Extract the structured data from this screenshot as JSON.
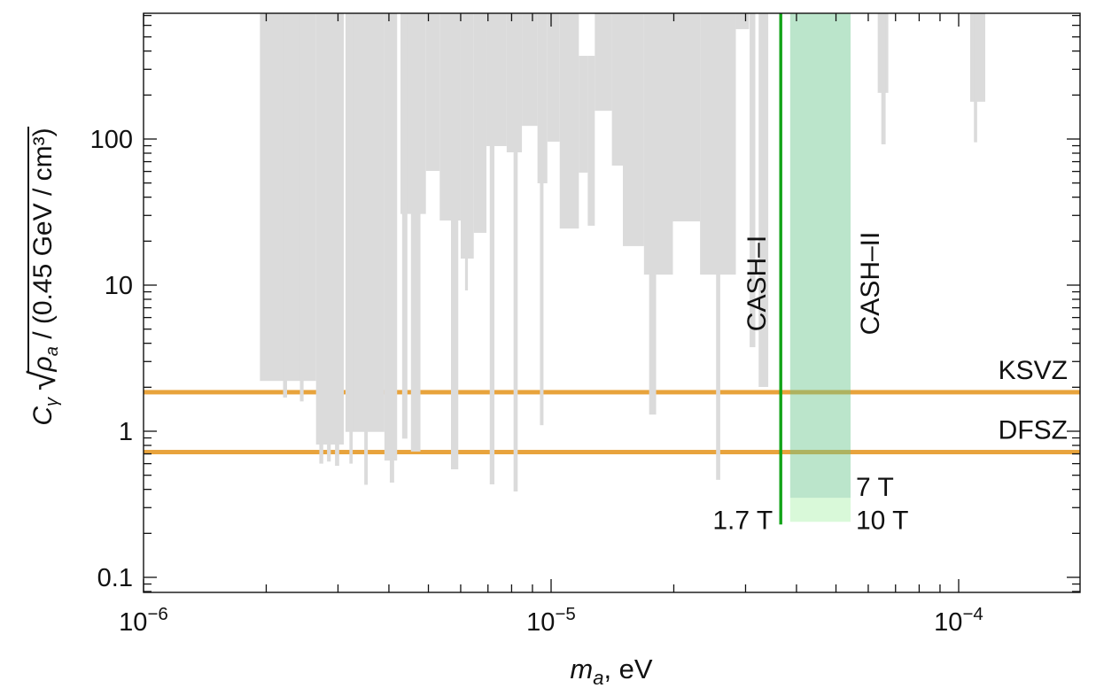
{
  "chart_data": {
    "type": "area",
    "title": "",
    "x_axis": {
      "label_symbol": "m",
      "label_symbol_sub": "a",
      "label_rest": ", eV",
      "scale": "log",
      "range": [
        1e-06,
        0.000199
      ],
      "major_ticks": [
        {
          "value": 1e-06,
          "base": "10",
          "exp": "−6"
        },
        {
          "value": 1e-05,
          "base": "10",
          "exp": "−5"
        },
        {
          "value": 0.0001,
          "base": "10",
          "exp": "−4"
        }
      ]
    },
    "y_axis": {
      "label_prefix": "C",
      "label_prefix_sub": "γ",
      "label_sqrt": "√",
      "label_radicand": "ρ",
      "label_radicand_sub": "a",
      "label_radicand_rest": " / (0.45 GeV / cm³)",
      "scale": "log",
      "range": [
        0.079,
        726
      ],
      "major_ticks": [
        {
          "value": 0.1,
          "label": "0.1"
        },
        {
          "value": 1,
          "label": "1"
        },
        {
          "value": 10,
          "label": "10"
        },
        {
          "value": 100,
          "label": "100"
        }
      ]
    },
    "series": {
      "excluded_region": {
        "name": "gray-exclusion-region",
        "color": "#DBDBDB",
        "columns": [
          [
            1.93e-06,
            2.65e-06,
            2.21
          ],
          [
            2.65e-06,
            3.1e-06,
            0.81
          ],
          [
            3.13e-06,
            3.9e-06,
            0.99
          ],
          [
            3.9e-06,
            4.19e-06,
            0.63
          ],
          [
            4.27e-06,
            4.93e-06,
            30.7
          ],
          [
            4.93e-06,
            5.33e-06,
            60.5
          ],
          [
            5.33e-06,
            6e-06,
            27.7
          ],
          [
            6e-06,
            6.46e-06,
            15.2
          ],
          [
            6.46e-06,
            6.94e-06,
            22.8
          ],
          [
            6.94e-06,
            7.78e-06,
            89.5
          ],
          [
            7.78e-06,
            8.48e-06,
            81.1
          ],
          [
            8.48e-06,
            9.26e-06,
            123
          ],
          [
            9.26e-06,
            9.79e-06,
            49.8
          ],
          [
            9.79e-06,
            1.05e-05,
            95.9
          ],
          [
            1.05e-05,
            1.17e-05,
            24.4
          ],
          [
            1.17e-05,
            1.23e-05,
            58.9,
            371
          ],
          [
            1.23e-05,
            1.28e-05,
            25.5,
            371
          ],
          [
            1.28e-05,
            1.41e-05,
            156
          ],
          [
            1.41e-05,
            1.5e-05,
            65.8
          ],
          [
            1.5e-05,
            1.69e-05,
            18.5
          ],
          [
            1.69e-05,
            1.99e-05,
            11.8
          ],
          [
            1.99e-05,
            2.32e-05,
            27.3
          ],
          [
            2.32e-05,
            2.84e-05,
            11.8
          ],
          [
            2.84e-05,
            3.06e-05,
            565
          ],
          [
            3.07e-05,
            3.17e-05,
            3.76
          ],
          [
            3.23e-05,
            3.41e-05,
            2.01
          ],
          [
            6.33e-05,
            6.72e-05,
            207
          ],
          [
            0.0001067,
            0.0001162,
            180
          ]
        ],
        "spikes": [
          [
            2.2e-06,
            2.25e-06,
            1.7
          ],
          [
            2.42e-06,
            2.47e-06,
            1.6
          ],
          [
            2.7e-06,
            2.76e-06,
            0.6
          ],
          [
            2.82e-06,
            2.88e-06,
            0.62
          ],
          [
            2.95e-06,
            3.02e-06,
            0.58
          ],
          [
            3.2e-06,
            3.26e-06,
            0.6
          ],
          [
            3.48e-06,
            3.55e-06,
            0.43
          ],
          [
            4.02e-06,
            4.12e-06,
            0.445
          ],
          [
            4.31e-06,
            4.44e-06,
            0.89
          ],
          [
            4.53e-06,
            4.78e-06,
            0.726
          ],
          [
            5.68e-06,
            5.92e-06,
            0.549
          ],
          [
            6.15e-06,
            6.25e-06,
            9.2
          ],
          [
            7.07e-06,
            7.26e-06,
            0.433
          ],
          [
            8.09e-06,
            8.28e-06,
            0.387
          ],
          [
            9.39e-06,
            9.58e-06,
            1.1
          ],
          [
            1.74e-05,
            1.81e-05,
            1.3
          ],
          [
            2.54e-05,
            2.6e-05,
            0.465
          ],
          [
            6.46e-05,
            6.62e-05,
            92
          ],
          [
            0.000109,
            0.000111,
            95
          ]
        ]
      },
      "ksvz": {
        "label": "KSVZ",
        "type": "hline",
        "C": 1.85,
        "color": "#E8A33C"
      },
      "dfsz": {
        "label": "DFSZ",
        "type": "hline",
        "C": 0.72,
        "color": "#E8A33C"
      },
      "cash1": {
        "label": "CASH–I",
        "type": "vline",
        "mass_eV": 3.66e-05,
        "C_min": 0.23,
        "field_label": "1.7 T",
        "color": "#12A318"
      },
      "cash2": {
        "label": "CASH–II",
        "type": "band",
        "mass_eV_range": [
          3.86e-05,
          5.43e-05
        ],
        "C_min_7T": 0.35,
        "C_min_10T": 0.24,
        "field_label_7T": "7 T",
        "field_label_10T": "10 T",
        "band_color": "rgba(105,198,140,0.45)",
        "band_color_light": "rgba(165,240,165,0.42)",
        "text_color": "#12A318"
      }
    },
    "legend_position": "none",
    "grid": false
  }
}
